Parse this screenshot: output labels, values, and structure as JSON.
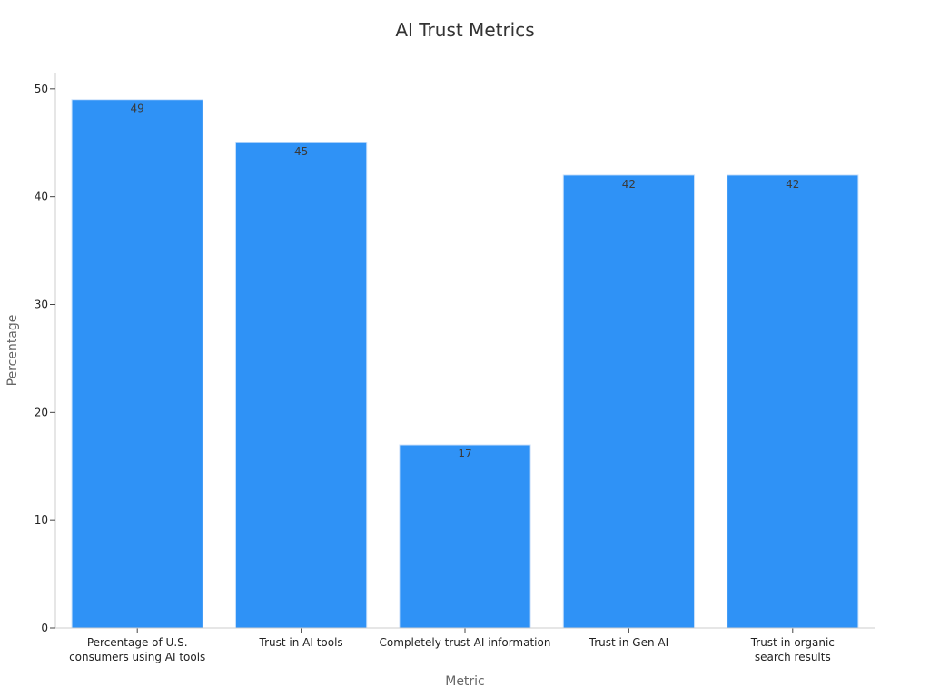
{
  "chart_data": {
    "type": "bar",
    "title": "AI Trust Metrics",
    "xlabel": "Metric",
    "ylabel": "Percentage",
    "categories": [
      [
        "Percentage of U.S.",
        "consumers using AI tools"
      ],
      [
        "Trust in AI tools"
      ],
      [
        "Completely trust AI information"
      ],
      [
        "Trust in Gen AI"
      ],
      [
        "Trust in organic",
        "search results"
      ]
    ],
    "values": [
      49,
      45,
      17,
      42,
      42
    ],
    "ylim": [
      0,
      51.5
    ],
    "yticks": [
      0,
      10,
      20,
      30,
      40,
      50
    ],
    "grid": false,
    "legend": "none",
    "bar_color": "#2f92f6"
  }
}
